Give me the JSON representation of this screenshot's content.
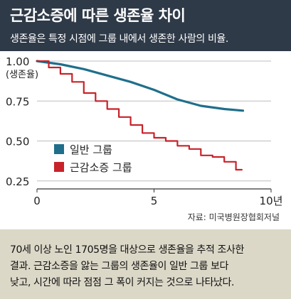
{
  "header": {
    "title": "근감소증에 따른 생존율 차이",
    "subtitle": "생존율은 특정 시점에 그룹 내에서 생존한 사람의 비율."
  },
  "source": "자료: 미국병원장협회저널",
  "caption_lines": [
    "70세 이상 노인 1705명을 대상으로 생존율을 추적 조사한",
    "결과. 근감소증을 앓는 그룹의 생존율이 일반 그룹 보다",
    "낮고, 시간에 따라 점점 그 폭이 커지는 것으로 나타났다."
  ],
  "colors": {
    "header_bg": "#2f3a48",
    "normal_group": "#1f6f8b",
    "sarcopenia_group": "#c8222a",
    "caption_bg": "#dcd8c8"
  },
  "chart_data": {
    "type": "line",
    "ylabel": "(생존율)",
    "xlabel": "",
    "x_unit": "년",
    "xlim": [
      0,
      10
    ],
    "ylim": [
      0.2,
      1.0
    ],
    "x_ticks": [
      {
        "value": 0,
        "label": "0"
      },
      {
        "value": 5,
        "label": "5"
      },
      {
        "value": 10,
        "label": "10년"
      }
    ],
    "y_ticks": [
      {
        "value": 1.0,
        "label": "1.00"
      },
      {
        "value": 0.75,
        "label": "0.75"
      },
      {
        "value": 0.5,
        "label": "0.50"
      },
      {
        "value": 0.25,
        "label": "0.25"
      }
    ],
    "grid": true,
    "legend_position": "lower-left",
    "series": [
      {
        "name": "일반 그룹",
        "color": "#1f6f8b",
        "step": false,
        "x": [
          0,
          1,
          2,
          3,
          4,
          5,
          6,
          7,
          8,
          8.8
        ],
        "y": [
          1.0,
          0.98,
          0.95,
          0.91,
          0.87,
          0.82,
          0.76,
          0.72,
          0.7,
          0.69
        ]
      },
      {
        "name": "근감소증 그룹",
        "color": "#c8222a",
        "step": true,
        "x": [
          0,
          0.5,
          1.0,
          1.5,
          2.0,
          2.5,
          3.0,
          3.5,
          4.0,
          4.5,
          5.0,
          5.5,
          6.0,
          6.5,
          7.0,
          7.5,
          8.0,
          8.5
        ],
        "y": [
          1.0,
          0.96,
          0.92,
          0.87,
          0.8,
          0.75,
          0.7,
          0.65,
          0.6,
          0.55,
          0.52,
          0.5,
          0.47,
          0.45,
          0.41,
          0.4,
          0.37,
          0.32
        ]
      }
    ]
  }
}
